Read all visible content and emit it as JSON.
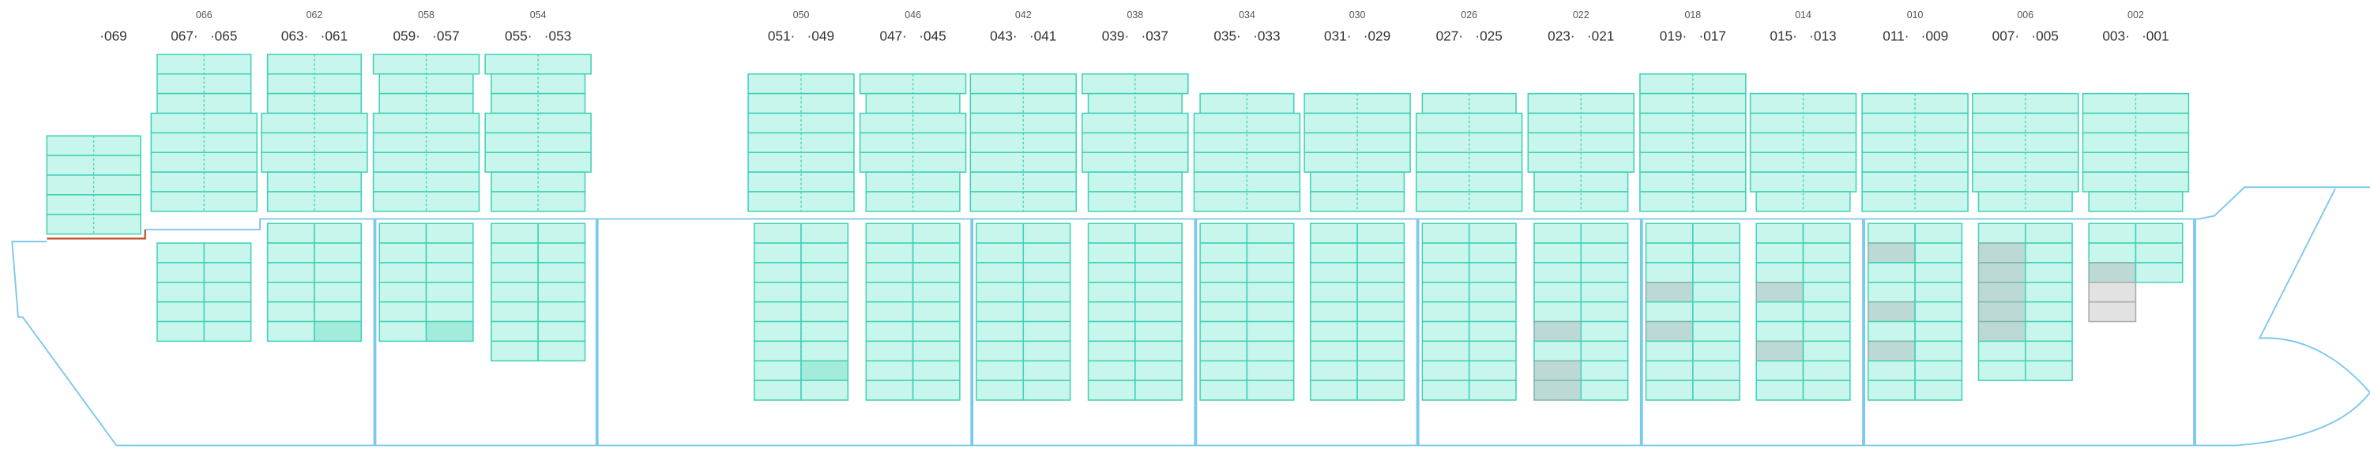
{
  "bays": [
    {
      "right": "·069"
    },
    {
      "left": "067·",
      "middle": "066",
      "right": "·065"
    },
    {
      "left": "063·",
      "middle": "062",
      "right": "·061"
    },
    {
      "left": "059·",
      "middle": "058",
      "right": "·057"
    },
    {
      "left": "055·",
      "middle": "054",
      "right": "·053"
    },
    {
      "left": "051·",
      "middle": "050",
      "right": "·049"
    },
    {
      "left": "047·",
      "middle": "046",
      "right": "·045"
    },
    {
      "left": "043·",
      "middle": "042",
      "right": "·041"
    },
    {
      "left": "039·",
      "middle": "038",
      "right": "·037"
    },
    {
      "left": "035·",
      "middle": "034",
      "right": "·033"
    },
    {
      "left": "031·",
      "middle": "030",
      "right": "·029"
    },
    {
      "left": "027·",
      "middle": "026",
      "right": "·025"
    },
    {
      "left": "023·",
      "middle": "022",
      "right": "·021"
    },
    {
      "left": "019·",
      "middle": "018",
      "right": "·017"
    },
    {
      "left": "015·",
      "middle": "014",
      "right": "·013"
    },
    {
      "left": "011·",
      "middle": "010",
      "right": "·009"
    },
    {
      "left": "007·",
      "middle": "006",
      "right": "·005"
    },
    {
      "left": "003·",
      "middle": "002",
      "right": "·001"
    }
  ]
}
